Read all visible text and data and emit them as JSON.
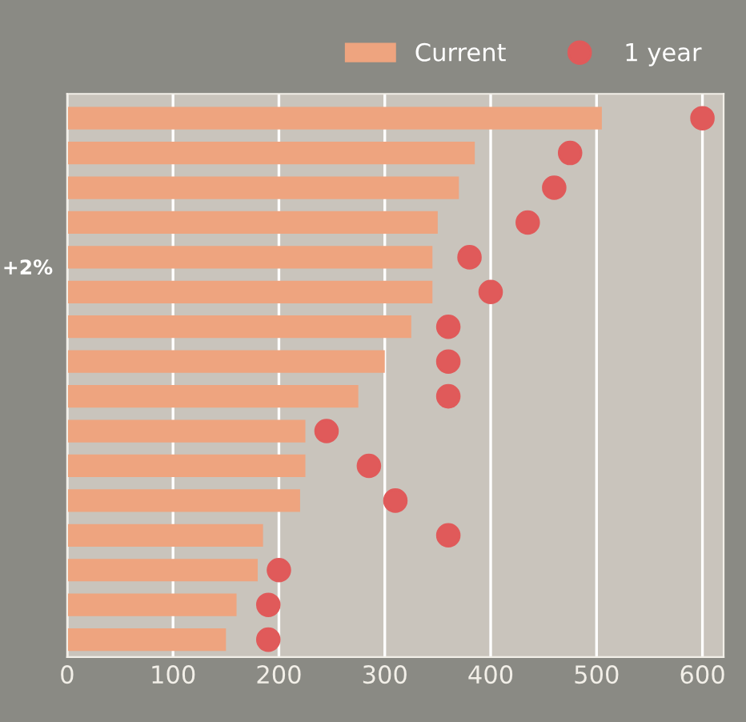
{
  "chart_data": {
    "type": "bar",
    "orientation": "horizontal",
    "categories": [
      null,
      null,
      null,
      null,
      null,
      null,
      null,
      null,
      null,
      null,
      null,
      null,
      null,
      null,
      null,
      null
    ],
    "series": [
      {
        "name": "Current",
        "color": "#eea47f",
        "values": [
          505,
          385,
          370,
          350,
          345,
          345,
          325,
          300,
          275,
          225,
          225,
          220,
          185,
          180,
          160,
          150
        ]
      },
      {
        "name": "1 year",
        "color": "#e05a5a",
        "type": "scatter",
        "values": [
          600,
          475,
          460,
          435,
          380,
          400,
          360,
          360,
          360,
          245,
          285,
          310,
          360,
          200,
          190,
          190
        ]
      }
    ],
    "xlim": [
      0,
      620
    ],
    "xticks": [
      0,
      100,
      200,
      300,
      400,
      500,
      600
    ],
    "grid": "x",
    "legend": "top right",
    "marker": "circle",
    "annotations": [
      "+2%"
    ]
  }
}
